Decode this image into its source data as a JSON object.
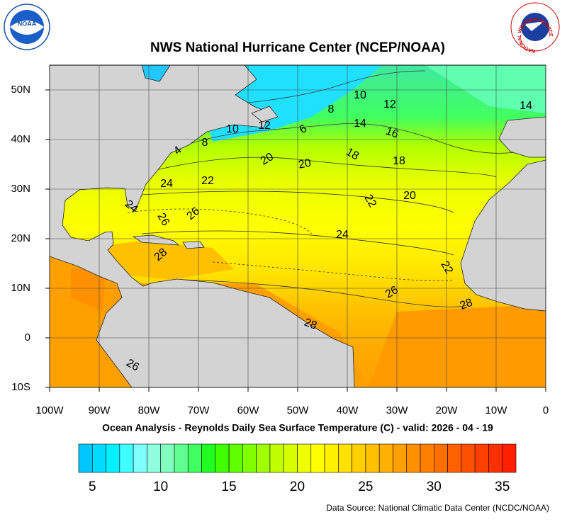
{
  "header": {
    "title": "NWS National Hurricane Center (NCEP/NOAA)"
  },
  "logos": {
    "noaa": "NOAA",
    "nws": "NATIONAL WEATHER SERVICE"
  },
  "map": {
    "x_labels": [
      "100W",
      "90W",
      "80W",
      "70W",
      "60W",
      "50W",
      "40W",
      "30W",
      "20W",
      "10W",
      "0"
    ],
    "y_labels": [
      "50N",
      "40N",
      "30N",
      "20N",
      "10N",
      "0",
      "10S"
    ],
    "contour_labels": [
      "10",
      "12",
      "14",
      "8",
      "14",
      "16",
      "10",
      "12",
      "6",
      "8",
      "4",
      "20",
      "18",
      "20",
      "18",
      "24",
      "22",
      "20",
      "22",
      "24",
      "26",
      "26",
      "24",
      "28",
      "22",
      "26",
      "28",
      "28",
      "26"
    ]
  },
  "caption": "Ocean Analysis - Reynolds Daily Sea Surface Temperature (C) - valid: 2026 - 04 - 19",
  "colorbar": {
    "range": [
      4,
      36
    ],
    "ticks": [
      5,
      10,
      15,
      20,
      25,
      30,
      35
    ],
    "colors": [
      "#00c8ff",
      "#00dcff",
      "#00f0ff",
      "#40ffff",
      "#80ffff",
      "#90ffe0",
      "#80ffc0",
      "#60ff90",
      "#40ff60",
      "#20ff20",
      "#40ff00",
      "#60ff00",
      "#80ff00",
      "#a0ff00",
      "#c0ff00",
      "#d8ff00",
      "#f0ff00",
      "#ffff00",
      "#fff000",
      "#ffe000",
      "#ffd000",
      "#ffc000",
      "#ffb000",
      "#ffa000",
      "#ff9000",
      "#ff8000",
      "#ff7000",
      "#ff6000",
      "#ff5000",
      "#ff4000",
      "#ff3000",
      "#ff2000"
    ]
  },
  "source": "Data Source: National Climatic Data Center (NCDC/NOAA)"
}
